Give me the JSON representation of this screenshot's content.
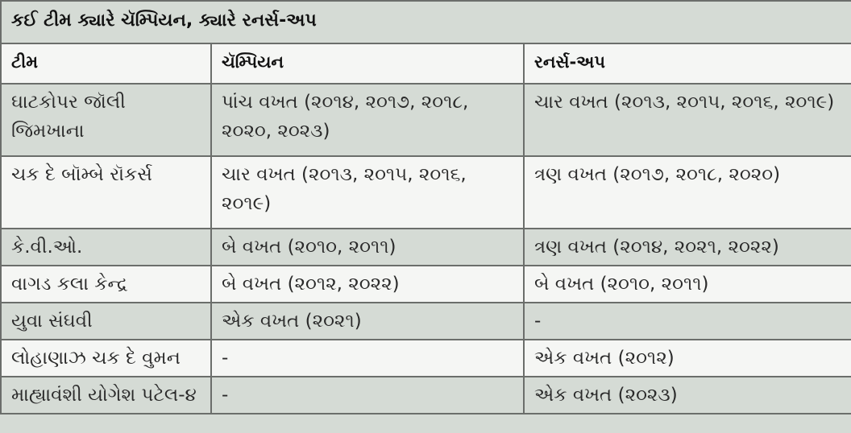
{
  "title": "કઈ ટીમ ક્યારે ચૅમ્પિયન, ક્યારે રનર્સ-અપ",
  "headers": [
    "ટીમ",
    "ચૅમ્પિયન",
    "રનર્સ-અપ"
  ],
  "rows": [
    [
      "ઘાટકોપર જૉલી જિમખાના",
      "પાંચ વખત (૨૦૧૪, ૨૦૧૭, ૨૦૧૮, ૨૦૨૦, ૨૦૨૩)",
      "ચાર વખત (૨૦૧૩, ૨૦૧૫, ૨૦૧૬, ૨૦૧૯)"
    ],
    [
      "ચક દે બૉમ્બે રૉકર્સ",
      "ચાર વખત (૨૦૧૩, ૨૦૧૫, ૨૦૧૬, ૨૦૧૯)",
      "ત્રણ વખત (૨૦૧૭, ૨૦૧૮, ૨૦૨૦)"
    ],
    [
      "કે.વી.ઓ.",
      "બે વખત (૨૦૧૦, ૨૦૧૧)",
      "ત્રણ વખત (૨૦૧૪, ૨૦૨૧, ૨૦૨૨)"
    ],
    [
      "વાગડ કલા કેન્દ્ર",
      "બે વખત (૨૦૧૨, ૨૦૨૨)",
      "બે વખત (૨૦૧૦, ૨૦૧૧)"
    ],
    [
      "યુવા સંઘવી",
      "એક વખત (૨૦૨૧)",
      "-"
    ],
    [
      "લોહાણાઝ ચક દે વુમન",
      "-",
      "એક વખત (૨૦૧૨)"
    ],
    [
      "માહ્યાવંશી યોગેશ પટેલ-૪",
      "-",
      "એક વખત (૨૦૨૩)"
    ]
  ]
}
